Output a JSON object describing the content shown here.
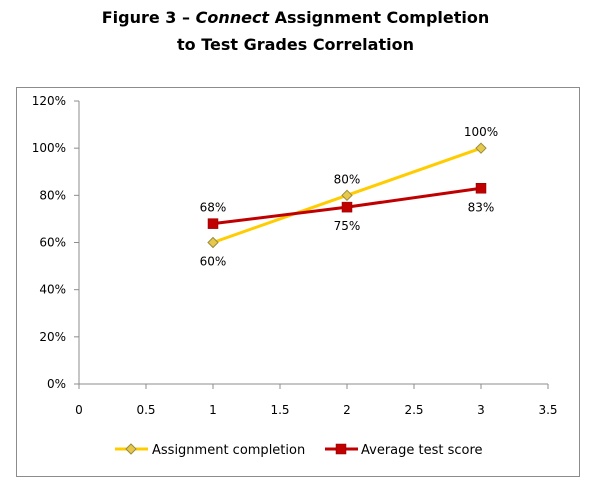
{
  "title_line1_prefix": "Figure 3 – ",
  "title_line1_italic": "Connect",
  "title_line1_suffix": " Assignment Completion",
  "title_line2": "to Test Grades Correlation",
  "colors": {
    "assignment": "#FFCC00",
    "assignment_marker_fill": "#E6C84A",
    "assignment_marker_stroke": "#9A8A40",
    "test": "#C00000",
    "test_marker": "#C00000"
  },
  "chart_data": {
    "type": "line",
    "title": "Figure 3 – Connect Assignment Completion to Test Grades Correlation",
    "xlim": [
      0,
      3.5
    ],
    "ylim": [
      0,
      120
    ],
    "x_ticks": [
      "0",
      "0.5",
      "1",
      "1.5",
      "2",
      "2.5",
      "3",
      "3.5"
    ],
    "y_ticks": [
      "0%",
      "20%",
      "40%",
      "60%",
      "80%",
      "100%",
      "120%"
    ],
    "grid": false,
    "legend_position": "bottom",
    "series": [
      {
        "name": "Assignment completion",
        "x": [
          1,
          2,
          3
        ],
        "y": [
          60,
          80,
          100
        ],
        "labels": [
          "60%",
          "80%",
          "100%"
        ],
        "label_pos": [
          "below",
          "above",
          "above"
        ]
      },
      {
        "name": "Average test score",
        "x": [
          1,
          2,
          3
        ],
        "y": [
          68,
          75,
          83
        ],
        "labels": [
          "68%",
          "75%",
          "83%"
        ],
        "label_pos": [
          "above",
          "below",
          "below"
        ]
      }
    ]
  }
}
